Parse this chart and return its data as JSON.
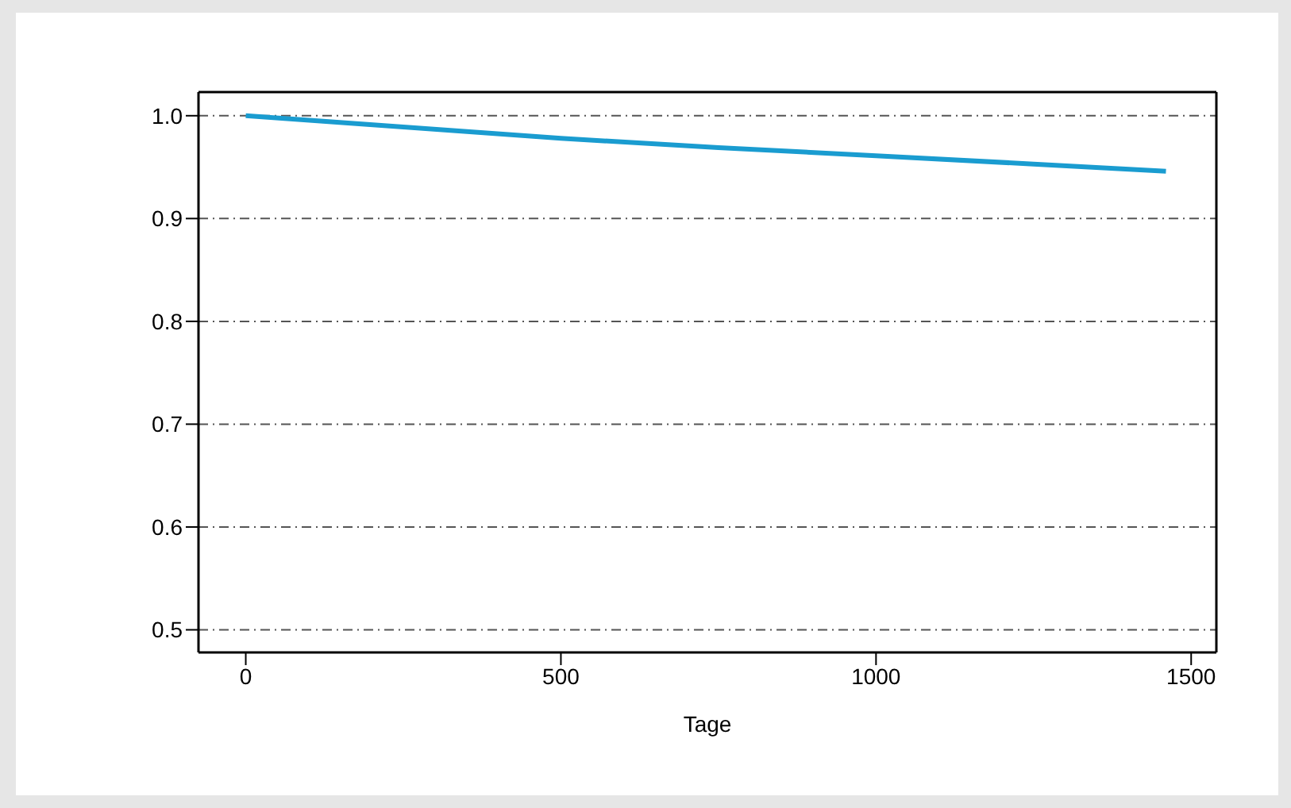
{
  "chart_data": {
    "type": "line",
    "xlabel": "Tage",
    "x": [
      0,
      250,
      500,
      750,
      1000,
      1250,
      1460
    ],
    "series": [
      {
        "color": "#1a9cd0",
        "values": [
          1.0,
          0.989,
          0.978,
          0.969,
          0.961,
          0.953,
          0.946
        ]
      }
    ],
    "xlim": [
      -75,
      1540
    ],
    "xticks": [
      0,
      500,
      1000,
      1500
    ],
    "ylim": [
      0.478,
      1.023
    ],
    "yticks": [
      0.5,
      0.6,
      0.7,
      0.8,
      0.9,
      {
        "value": 1,
        "label": "1.0"
      }
    ],
    "grid": "y",
    "marker": "none",
    "line_style": "solid"
  }
}
